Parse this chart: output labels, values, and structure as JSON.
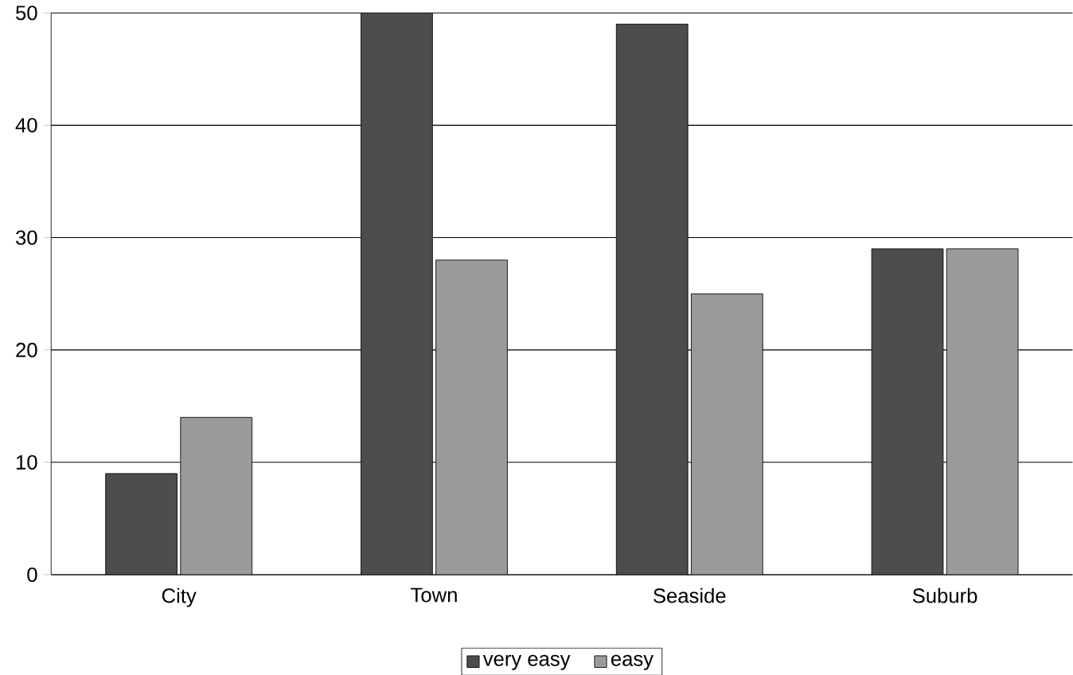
{
  "chart_data": {
    "type": "bar",
    "categories": [
      "City",
      "Town",
      "Seaside",
      "Suburb"
    ],
    "series": [
      {
        "name": "very easy",
        "color": "#4d4d4d",
        "values": [
          9,
          50,
          49,
          29
        ]
      },
      {
        "name": "easy",
        "color": "#9a9a9a",
        "values": [
          14,
          28,
          25,
          29
        ]
      }
    ],
    "ylim": [
      0,
      50
    ],
    "yticks": [
      0,
      10,
      20,
      30,
      40,
      50
    ],
    "grid": "y",
    "legend": "bottom"
  }
}
